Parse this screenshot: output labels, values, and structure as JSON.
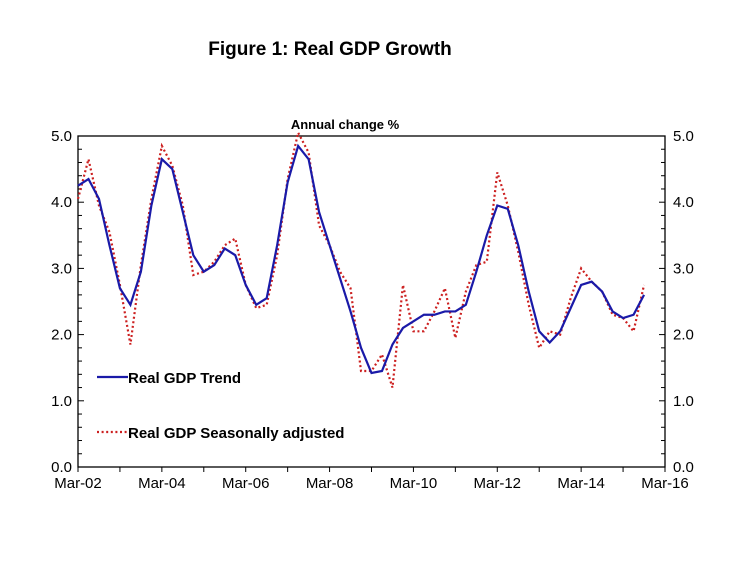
{
  "chart_data": {
    "type": "line",
    "title": "Figure 1: Real GDP Growth",
    "subtitle": "Annual change %",
    "x_ticks": [
      "Mar-02",
      "Mar-04",
      "Mar-06",
      "Mar-08",
      "Mar-10",
      "Mar-12",
      "Mar-14",
      "Mar-16"
    ],
    "y_ticks_left": [
      "0.0",
      "1.0",
      "2.0",
      "3.0",
      "4.0",
      "5.0"
    ],
    "y_ticks_right": [
      "0.0",
      "1.0",
      "2.0",
      "3.0",
      "4.0",
      "5.0"
    ],
    "ylim": [
      0,
      5
    ],
    "xlim": [
      "Mar-02",
      "Mar-16"
    ],
    "legend_position": "lower-left",
    "x": [
      "Mar-02",
      "Jun-02",
      "Sep-02",
      "Dec-02",
      "Mar-03",
      "Jun-03",
      "Sep-03",
      "Dec-03",
      "Mar-04",
      "Jun-04",
      "Sep-04",
      "Dec-04",
      "Mar-05",
      "Jun-05",
      "Sep-05",
      "Dec-05",
      "Mar-06",
      "Jun-06",
      "Sep-06",
      "Dec-06",
      "Mar-07",
      "Jun-07",
      "Sep-07",
      "Dec-07",
      "Mar-08",
      "Jun-08",
      "Sep-08",
      "Dec-08",
      "Mar-09",
      "Jun-09",
      "Sep-09",
      "Dec-09",
      "Mar-10",
      "Jun-10",
      "Sep-10",
      "Dec-10",
      "Mar-11",
      "Jun-11",
      "Sep-11",
      "Dec-11",
      "Mar-12",
      "Jun-12",
      "Sep-12",
      "Dec-12",
      "Mar-13",
      "Jun-13",
      "Sep-13",
      "Dec-13",
      "Mar-14",
      "Jun-14",
      "Sep-14",
      "Dec-14",
      "Mar-15",
      "Jun-15",
      "Sep-15"
    ],
    "series": [
      {
        "name": "Real GDP Trend",
        "color": "#1a1aa8",
        "style": "solid",
        "values": [
          4.25,
          4.35,
          4.05,
          3.35,
          2.7,
          2.45,
          2.95,
          3.95,
          4.65,
          4.5,
          3.85,
          3.2,
          2.95,
          3.05,
          3.3,
          3.2,
          2.75,
          2.45,
          2.55,
          3.35,
          4.3,
          4.85,
          4.65,
          3.85,
          3.35,
          2.85,
          2.35,
          1.8,
          1.42,
          1.45,
          1.85,
          2.1,
          2.2,
          2.3,
          2.3,
          2.35,
          2.35,
          2.45,
          2.95,
          3.5,
          3.95,
          3.9,
          3.35,
          2.65,
          2.05,
          1.88,
          2.05,
          2.4,
          2.75,
          2.8,
          2.65,
          2.35,
          2.25,
          2.3,
          2.6
        ]
      },
      {
        "name": "Real GDP Seasonally adjusted",
        "color": "#cc1f1f",
        "style": "dotted",
        "values": [
          4.05,
          4.65,
          3.95,
          3.55,
          2.75,
          1.85,
          3.05,
          4.05,
          4.85,
          4.55,
          3.95,
          2.9,
          2.95,
          3.1,
          3.35,
          3.45,
          2.75,
          2.4,
          2.45,
          3.2,
          4.35,
          5.05,
          4.75,
          3.65,
          3.35,
          2.95,
          2.7,
          1.45,
          1.45,
          1.7,
          1.2,
          2.75,
          2.05,
          2.05,
          2.35,
          2.7,
          1.95,
          2.65,
          3.05,
          3.1,
          4.45,
          3.95,
          3.25,
          2.45,
          1.8,
          2.05,
          2.0,
          2.55,
          3.0,
          2.8,
          2.65,
          2.3,
          2.25,
          2.05,
          2.75
        ]
      }
    ]
  }
}
